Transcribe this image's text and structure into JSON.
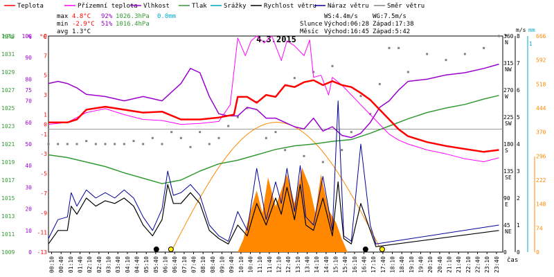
{
  "chart_data": {
    "type": "line",
    "title": "4.3.2015",
    "xlabel": "čas",
    "legend": [
      {
        "name": "Teplota",
        "color": "#ff0000"
      },
      {
        "name": "Přízemní teplota",
        "color": "#ff00ff"
      },
      {
        "name": "Vlhkost",
        "color": "#9900cc"
      },
      {
        "name": "Tlak",
        "color": "#339933"
      },
      {
        "name": "Srážky",
        "color": "#00aacc"
      },
      {
        "name": "Rychlost větru",
        "color": "#000000"
      },
      {
        "name": "Náraz větru",
        "color": "#000099"
      },
      {
        "name": "Směr větru",
        "color": "#808080"
      }
    ],
    "stats": {
      "max_label": "max",
      "max_temp": "4.8°C",
      "max_hum": "92%",
      "max_press": "1026.3hPa",
      "max_rain": "0.0mm",
      "min_label": "min",
      "min_temp": "-2.9°C",
      "min_hum": "51%",
      "min_press": "1016.4hPa",
      "avg_label": "avg",
      "avg_temp": "1.3°C"
    },
    "info": {
      "ws": "WS:4.4m/s",
      "wg": "WG:7.5m/s",
      "sun_label": "Slunce",
      "sun_rise": "Východ:06:28",
      "sun_set": "Západ:17:38",
      "moon_label": "Měsíc",
      "moon_rise": "Východ:16:45",
      "moon_set": "Západ:5:42"
    },
    "axes": {
      "hpa": {
        "unit": "hPa",
        "ticks": [
          "1033",
          "1031",
          "1029",
          "1027",
          "1025",
          "1023",
          "1021",
          "1019",
          "1017",
          "1015",
          "1013",
          "1011",
          "1009"
        ]
      },
      "pct": {
        "unit": "%",
        "ticks": [
          "100",
          "90",
          "80",
          "75",
          "70",
          "60",
          "50",
          "40",
          "30",
          "20",
          "10",
          "0"
        ]
      },
      "degc": {
        "unit": "°C",
        "ticks": [
          "9",
          "7",
          "5",
          "3",
          "1",
          "0",
          "-1",
          "-3",
          "-5",
          "-7",
          "-9",
          "-11",
          "-13"
        ]
      },
      "deg": {
        "unit": "°",
        "ticks": [
          "360",
          "315",
          "270",
          "225",
          "180",
          "135",
          "90",
          "45",
          "0"
        ]
      },
      "dir": {
        "ticks": [
          "N",
          "NW",
          "W",
          "SW",
          "S",
          "SE",
          "E",
          "NE"
        ]
      },
      "ms": {
        "unit": "m/s",
        "ticks": [
          "8",
          "7",
          "6",
          "5",
          "4",
          "3",
          "2",
          "1",
          "0"
        ]
      },
      "mm": {
        "unit": "mm",
        "ticks": [
          "1"
        ]
      },
      "wm2": {
        "ticks": [
          "666",
          "592",
          "518",
          "444",
          "370",
          "296",
          "222",
          "148",
          "74",
          "0"
        ]
      }
    },
    "hours": [
      "00:10",
      "00:40",
      "01:10",
      "01:40",
      "02:10",
      "02:40",
      "03:10",
      "03:40",
      "04:10",
      "04:40",
      "05:10",
      "05:40",
      "06:10",
      "06:40",
      "07:10",
      "07:40",
      "08:10",
      "08:40",
      "09:10",
      "09:40",
      "10:10",
      "10:40",
      "11:10",
      "11:40",
      "12:10",
      "12:40",
      "13:10",
      "13:40",
      "14:10",
      "14:40",
      "15:10",
      "15:40",
      "16:10",
      "16:40",
      "17:10",
      "17:40",
      "18:10",
      "18:40",
      "19:10",
      "19:40",
      "20:10",
      "20:40",
      "21:10",
      "21:40",
      "22:10",
      "22:40",
      "23:10",
      "23:40"
    ],
    "series": {
      "temperature": [
        [
          0,
          0.2
        ],
        [
          1,
          0.2
        ],
        [
          1.5,
          0.5
        ],
        [
          2,
          1.5
        ],
        [
          3,
          1.8
        ],
        [
          4,
          1.5
        ],
        [
          5,
          1.2
        ],
        [
          6,
          1.3
        ],
        [
          7,
          0.5
        ],
        [
          8,
          0.5
        ],
        [
          9,
          0.7
        ],
        [
          9.8,
          1.0
        ],
        [
          10,
          2.8
        ],
        [
          10.5,
          2.8
        ],
        [
          11,
          2.2
        ],
        [
          11.5,
          3.0
        ],
        [
          12,
          2.8
        ],
        [
          12.5,
          4.0
        ],
        [
          13,
          3.8
        ],
        [
          13.5,
          4.3
        ],
        [
          14,
          4.5
        ],
        [
          14.5,
          4.0
        ],
        [
          15,
          4.4
        ],
        [
          15.5,
          4.0
        ],
        [
          16,
          3.8
        ],
        [
          16.5,
          3.2
        ],
        [
          17,
          2.5
        ],
        [
          17.5,
          1.5
        ],
        [
          18,
          0.5
        ],
        [
          18.5,
          -0.5
        ],
        [
          19,
          -1.2
        ],
        [
          20,
          -1.8
        ],
        [
          21,
          -2.2
        ],
        [
          22,
          -2.5
        ],
        [
          23,
          -2.8
        ],
        [
          23.8,
          -2.6
        ]
      ],
      "ground_temp": [
        [
          0,
          0.0
        ],
        [
          1,
          0.2
        ],
        [
          2,
          1.2
        ],
        [
          3,
          1.6
        ],
        [
          4,
          1.0
        ],
        [
          5,
          0.5
        ],
        [
          6,
          0.4
        ],
        [
          7,
          0.0
        ],
        [
          8,
          0.1
        ],
        [
          9,
          0.3
        ],
        [
          9.6,
          2.0
        ],
        [
          10,
          8.8
        ],
        [
          10.4,
          7.0
        ],
        [
          10.7,
          8.5
        ],
        [
          11,
          9.0
        ],
        [
          11.4,
          8.3
        ],
        [
          11.8,
          9.0
        ],
        [
          12,
          8.0
        ],
        [
          12.3,
          6.5
        ],
        [
          12.6,
          8.5
        ],
        [
          13,
          8.0
        ],
        [
          13.5,
          7.0
        ],
        [
          13.8,
          8.6
        ],
        [
          14,
          4.8
        ],
        [
          14.4,
          5.0
        ],
        [
          14.8,
          3.0
        ],
        [
          15,
          4.8
        ],
        [
          15.5,
          4.0
        ],
        [
          16,
          3.0
        ],
        [
          16.5,
          2.0
        ],
        [
          17,
          1.0
        ],
        [
          17.5,
          0.0
        ],
        [
          18,
          -1.0
        ],
        [
          18.5,
          -1.6
        ],
        [
          19,
          -2.0
        ],
        [
          20,
          -2.6
        ],
        [
          21,
          -3.0
        ],
        [
          22,
          -3.5
        ],
        [
          23,
          -3.8
        ],
        [
          23.8,
          -3.4
        ]
      ],
      "humidity": [
        [
          0,
          78
        ],
        [
          0.5,
          79
        ],
        [
          1,
          78
        ],
        [
          1.5,
          76
        ],
        [
          2,
          73
        ],
        [
          3,
          72
        ],
        [
          4,
          70
        ],
        [
          5,
          72
        ],
        [
          6,
          70
        ],
        [
          7,
          78
        ],
        [
          7.5,
          85
        ],
        [
          8,
          83
        ],
        [
          8.5,
          72
        ],
        [
          9,
          64
        ],
        [
          9.5,
          63
        ],
        [
          10,
          63
        ],
        [
          10.5,
          67
        ],
        [
          11,
          66
        ],
        [
          11.5,
          62
        ],
        [
          12,
          62
        ],
        [
          12.5,
          60
        ],
        [
          13,
          58
        ],
        [
          13.5,
          57
        ],
        [
          14,
          62
        ],
        [
          14.5,
          56
        ],
        [
          15,
          58
        ],
        [
          15.5,
          54
        ],
        [
          16,
          53
        ],
        [
          16.5,
          55
        ],
        [
          17,
          60
        ],
        [
          17.5,
          67
        ],
        [
          18,
          70
        ],
        [
          18.5,
          75
        ],
        [
          19,
          79
        ],
        [
          20,
          80
        ],
        [
          21,
          82
        ],
        [
          22,
          83
        ],
        [
          23,
          85
        ],
        [
          23.8,
          87
        ]
      ],
      "pressure": [
        [
          0,
          1019.8
        ],
        [
          1,
          1019.5
        ],
        [
          2,
          1019.0
        ],
        [
          3,
          1018.5
        ],
        [
          4,
          1017.8
        ],
        [
          5,
          1017.2
        ],
        [
          6,
          1016.6
        ],
        [
          7,
          1017.0
        ],
        [
          8,
          1018.0
        ],
        [
          9,
          1018.8
        ],
        [
          10,
          1019.2
        ],
        [
          11,
          1019.8
        ],
        [
          12,
          1020.4
        ],
        [
          13,
          1020.8
        ],
        [
          14,
          1021.0
        ],
        [
          15,
          1021.3
        ],
        [
          16,
          1021.5
        ],
        [
          17,
          1022.2
        ],
        [
          18,
          1023.0
        ],
        [
          19,
          1023.8
        ],
        [
          20,
          1024.5
        ],
        [
          21,
          1025.0
        ],
        [
          22,
          1025.4
        ],
        [
          23,
          1026.0
        ],
        [
          23.8,
          1026.4
        ]
      ],
      "wind_speed": [
        [
          0,
          0.3
        ],
        [
          0.5,
          0.8
        ],
        [
          1,
          0.8
        ],
        [
          1.2,
          1.7
        ],
        [
          1.5,
          1.4
        ],
        [
          2,
          2.0
        ],
        [
          2.5,
          1.7
        ],
        [
          3,
          1.9
        ],
        [
          3.5,
          1.8
        ],
        [
          4,
          2.0
        ],
        [
          4.5,
          1.7
        ],
        [
          5,
          1.0
        ],
        [
          5.5,
          0.6
        ],
        [
          6,
          1.2
        ],
        [
          6.3,
          2.5
        ],
        [
          6.6,
          1.8
        ],
        [
          7,
          1.8
        ],
        [
          7.5,
          2.2
        ],
        [
          8,
          1.8
        ],
        [
          8.5,
          0.8
        ],
        [
          9,
          0.5
        ],
        [
          9.5,
          0.3
        ],
        [
          10,
          1.0
        ],
        [
          10.5,
          0.6
        ],
        [
          11,
          1.8
        ],
        [
          11.5,
          1.0
        ],
        [
          12,
          2.0
        ],
        [
          12.3,
          1.4
        ],
        [
          12.6,
          2.4
        ],
        [
          13,
          1.2
        ],
        [
          13.3,
          2.5
        ],
        [
          13.6,
          1.0
        ],
        [
          14,
          0.8
        ],
        [
          14.5,
          2.0
        ],
        [
          15,
          0.6
        ],
        [
          15.3,
          2.6
        ],
        [
          15.6,
          0.5
        ],
        [
          16,
          0.3
        ],
        [
          16.5,
          1.8
        ],
        [
          17,
          0.8
        ],
        [
          17.3,
          0.2
        ],
        [
          23.8,
          0.8
        ]
      ],
      "wind_gust": [
        [
          0,
          0.5
        ],
        [
          0.5,
          1.2
        ],
        [
          1,
          1.3
        ],
        [
          1.2,
          2.2
        ],
        [
          1.5,
          1.7
        ],
        [
          2,
          2.3
        ],
        [
          2.5,
          2.0
        ],
        [
          3,
          2.2
        ],
        [
          3.5,
          2.0
        ],
        [
          4,
          2.3
        ],
        [
          4.5,
          2.0
        ],
        [
          5,
          1.3
        ],
        [
          5.5,
          0.8
        ],
        [
          6,
          1.6
        ],
        [
          6.3,
          3.0
        ],
        [
          6.6,
          2.1
        ],
        [
          7,
          2.2
        ],
        [
          7.5,
          2.5
        ],
        [
          8,
          2.1
        ],
        [
          8.5,
          1.0
        ],
        [
          9,
          0.6
        ],
        [
          9.5,
          0.4
        ],
        [
          10,
          1.5
        ],
        [
          10.5,
          0.8
        ],
        [
          11,
          3.1
        ],
        [
          11.5,
          1.2
        ],
        [
          12,
          2.6
        ],
        [
          12.3,
          1.8
        ],
        [
          12.6,
          3.1
        ],
        [
          13,
          1.5
        ],
        [
          13.3,
          3.2
        ],
        [
          13.6,
          1.3
        ],
        [
          14,
          1.0
        ],
        [
          14.5,
          2.8
        ],
        [
          15,
          0.8
        ],
        [
          15.3,
          5.6
        ],
        [
          15.6,
          0.6
        ],
        [
          16,
          0.4
        ],
        [
          16.5,
          4.0
        ],
        [
          17,
          1.0
        ],
        [
          17.3,
          0.3
        ],
        [
          23.8,
          1.0
        ]
      ],
      "solar_radiation": [
        [
          10,
          0
        ],
        [
          10.3,
          40
        ],
        [
          10.6,
          110
        ],
        [
          11,
          190
        ],
        [
          11.3,
          120
        ],
        [
          11.6,
          230
        ],
        [
          12,
          140
        ],
        [
          12.3,
          190
        ],
        [
          12.6,
          240
        ],
        [
          13,
          150
        ],
        [
          13.4,
          260
        ],
        [
          13.8,
          200
        ],
        [
          14.1,
          120
        ],
        [
          14.4,
          240
        ],
        [
          14.8,
          130
        ],
        [
          15.2,
          90
        ],
        [
          15.5,
          40
        ],
        [
          15.8,
          0
        ]
      ],
      "wind_dir": [
        [
          0,
          180
        ],
        [
          0.5,
          180
        ],
        [
          1,
          180
        ],
        [
          1.5,
          180
        ],
        [
          2,
          185
        ],
        [
          2.5,
          180
        ],
        [
          3,
          180
        ],
        [
          3.5,
          180
        ],
        [
          4,
          180
        ],
        [
          4.5,
          185
        ],
        [
          5,
          180
        ],
        [
          5.5,
          190
        ],
        [
          6,
          180
        ],
        [
          6.5,
          200
        ],
        [
          7,
          190
        ],
        [
          7.5,
          175
        ],
        [
          8,
          200
        ],
        [
          8.5,
          180
        ],
        [
          9,
          190
        ],
        [
          9.5,
          210
        ],
        [
          10,
          225
        ],
        [
          10.5,
          240
        ],
        [
          11,
          250
        ],
        [
          11.5,
          190
        ],
        [
          12,
          200
        ],
        [
          12.5,
          170
        ],
        [
          13,
          290
        ],
        [
          13.5,
          160
        ],
        [
          14,
          300
        ],
        [
          14.5,
          150
        ],
        [
          15,
          310
        ],
        [
          15.5,
          170
        ],
        [
          16,
          200
        ],
        [
          16.5,
          260
        ],
        [
          17,
          230
        ],
        [
          17.5,
          280
        ],
        [
          18,
          340
        ],
        [
          18.5,
          340
        ],
        [
          19,
          300
        ],
        [
          20,
          330
        ],
        [
          21,
          320
        ],
        [
          22,
          330
        ],
        [
          23,
          340
        ],
        [
          23.8,
          360
        ]
      ]
    }
  }
}
